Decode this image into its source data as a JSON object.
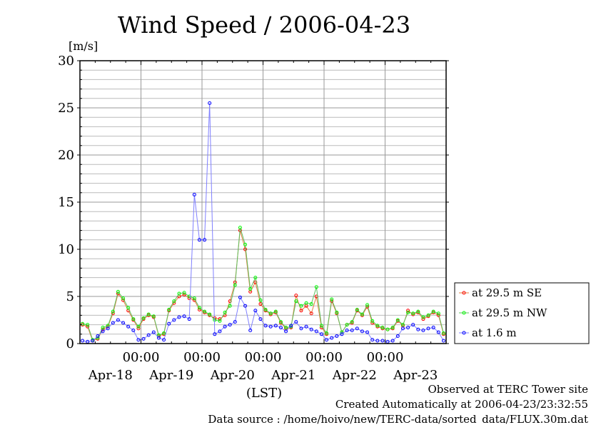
{
  "chart_data": {
    "type": "line",
    "title": "Wind Speed / 2006-04-23",
    "ylabel": "[m/s]",
    "xlabel": "(LST)",
    "ylim": [
      0,
      30
    ],
    "yticks": [
      "0",
      "5",
      "10",
      "15",
      "20",
      "25",
      "30"
    ],
    "xticks": [
      "00:00",
      "00:00",
      "00:00",
      "00:00",
      "00:00"
    ],
    "date_labels": [
      "Apr-18",
      "Apr-19",
      "Apr-20",
      "Apr-21",
      "Apr-22",
      "Apr-23"
    ],
    "x_interval_hours": 2,
    "grid": true,
    "legend_position": "right-bottom",
    "series": [
      {
        "name": "at 29.5 m SE",
        "color": "#ff0000",
        "line": "#e08040",
        "values": [
          2.0,
          1.8,
          0.3,
          0.5,
          1.5,
          1.8,
          3.2,
          5.3,
          4.6,
          3.5,
          2.5,
          1.6,
          2.6,
          3.0,
          2.8,
          0.8,
          1.0,
          3.5,
          4.3,
          5.0,
          5.2,
          4.8,
          4.6,
          3.6,
          3.3,
          3.0,
          2.7,
          2.6,
          3.0,
          4.5,
          6.5,
          12.0,
          10.0,
          5.5,
          6.5,
          4.2,
          3.5,
          3.1,
          3.3,
          2.2,
          1.6,
          1.7,
          5.1,
          3.5,
          4.0,
          3.2,
          5.0,
          1.7,
          1.0,
          4.5,
          3.2,
          1.2,
          2.0,
          2.2,
          3.5,
          3.0,
          3.9,
          2.2,
          1.8,
          1.6,
          1.5,
          1.6,
          2.4,
          1.9,
          3.5,
          3.1,
          3.3,
          2.6,
          2.9,
          3.3,
          3.0,
          1.0
        ]
      },
      {
        "name": "at 29.5 m NW",
        "color": "#00ff00",
        "line": "#60c060",
        "values": [
          2.1,
          2.0,
          0.4,
          0.6,
          1.7,
          1.9,
          3.4,
          5.5,
          4.8,
          3.8,
          2.6,
          1.8,
          2.7,
          3.1,
          2.9,
          0.9,
          1.1,
          3.6,
          4.5,
          5.3,
          5.4,
          5.0,
          4.8,
          3.8,
          3.4,
          3.1,
          2.5,
          2.4,
          3.3,
          4.0,
          6.2,
          12.3,
          10.5,
          5.8,
          7.0,
          4.6,
          3.6,
          3.2,
          3.4,
          2.3,
          1.7,
          1.8,
          4.5,
          4.0,
          4.3,
          4.2,
          6.0,
          1.9,
          1.1,
          4.7,
          3.3,
          1.2,
          2.0,
          2.3,
          3.6,
          3.1,
          4.1,
          2.4,
          1.9,
          1.7,
          1.5,
          1.7,
          2.5,
          2.0,
          3.3,
          3.2,
          3.4,
          2.8,
          3.0,
          3.4,
          3.2,
          1.1
        ]
      },
      {
        "name": "at 1.6 m",
        "color": "#0000ff",
        "line": "#8080ff",
        "values": [
          0.3,
          0.2,
          0.3,
          0.8,
          1.3,
          1.6,
          2.2,
          2.5,
          2.2,
          1.8,
          1.4,
          0.4,
          0.5,
          0.9,
          1.2,
          0.6,
          0.4,
          2.1,
          2.5,
          2.8,
          2.9,
          2.6,
          15.8,
          11.0,
          11.0,
          25.5,
          1.0,
          1.3,
          1.8,
          2.0,
          2.3,
          4.9,
          4.0,
          1.4,
          3.5,
          2.6,
          1.9,
          1.8,
          1.9,
          1.7,
          1.3,
          1.9,
          2.3,
          1.6,
          1.8,
          1.5,
          1.3,
          1.0,
          0.4,
          0.6,
          0.8,
          1.0,
          1.4,
          1.4,
          1.6,
          1.3,
          1.2,
          0.4,
          0.3,
          0.3,
          0.2,
          0.3,
          0.8,
          1.6,
          1.7,
          2.0,
          1.5,
          1.4,
          1.6,
          1.7,
          1.2,
          0.3
        ]
      }
    ]
  },
  "footer": {
    "line1": "Observed at TERC Tower site",
    "line2": "Created Automatically at 2006-04-23/23:32:55",
    "line3": "Data source : /home/hoivo/new/TERC-data/sorted_data/FLUX.30m.dat"
  }
}
